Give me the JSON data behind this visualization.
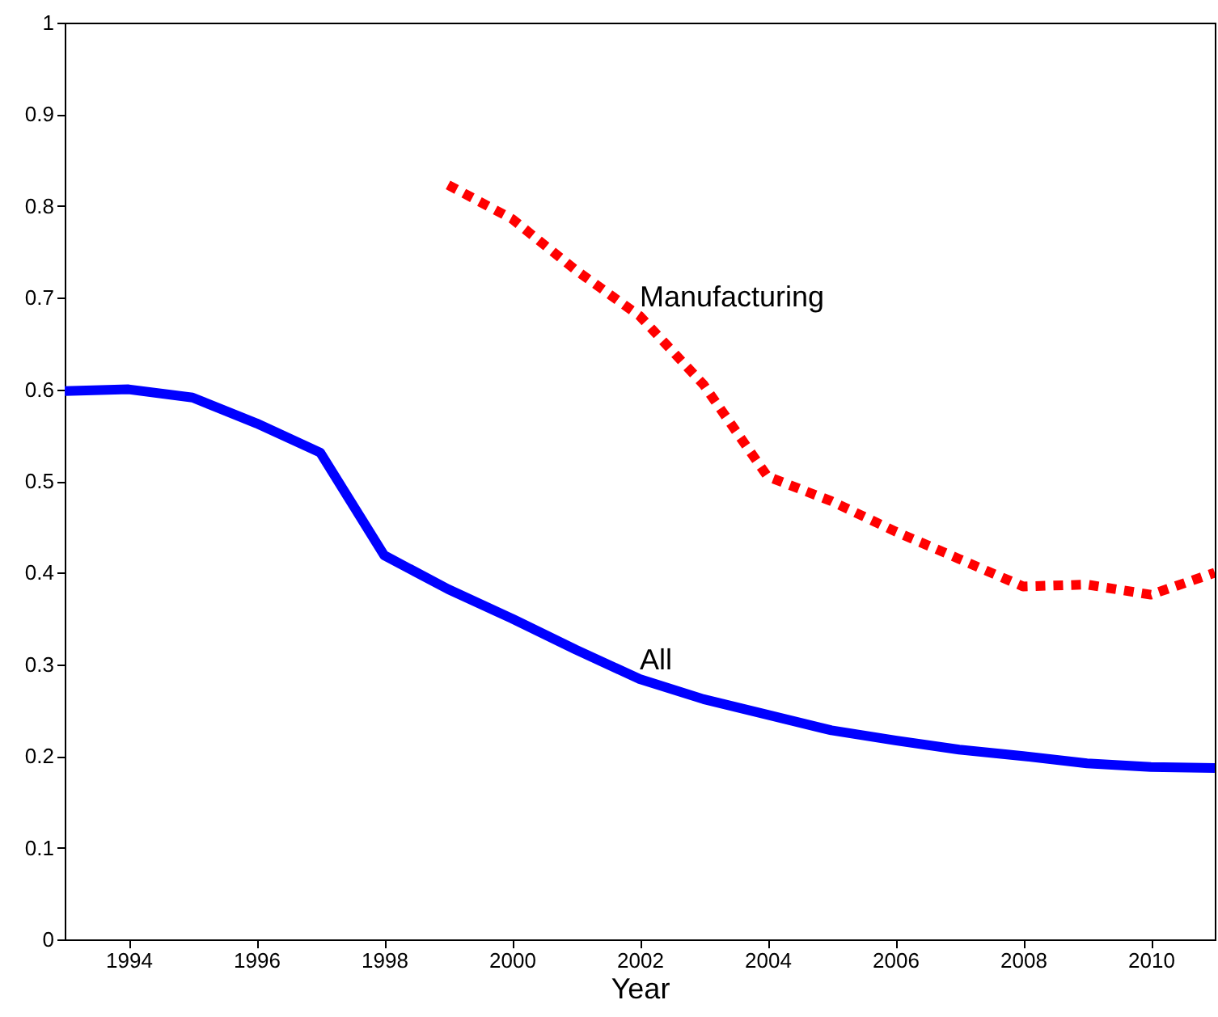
{
  "chart_data": {
    "type": "line",
    "xlabel": "Year",
    "x": [
      1993,
      1994,
      1995,
      1996,
      1997,
      1998,
      1999,
      2000,
      2001,
      2002,
      2003,
      2004,
      2005,
      2006,
      2007,
      2008,
      2009,
      2010,
      2011
    ],
    "series": [
      {
        "color": "#0000ff",
        "line_style": "solid",
        "values": [
          0.598,
          0.6,
          0.591,
          0.563,
          0.531,
          0.419,
          0.382,
          0.35,
          0.316,
          0.284,
          0.262,
          0.245,
          0.228,
          0.217,
          0.207,
          0.2,
          0.192,
          0.188,
          0.187
        ]
      },
      {
        "color": "#ff0000",
        "line_style": "dashed",
        "x": [
          1999,
          2000,
          2001,
          2002,
          2003,
          2004,
          2005,
          2006,
          2007,
          2008,
          2009,
          2010,
          2011
        ],
        "values": [
          0.823,
          0.786,
          0.73,
          0.68,
          0.605,
          0.505,
          0.478,
          0.445,
          0.415,
          0.385,
          0.387,
          0.376,
          0.4
        ]
      }
    ],
    "annotations": [
      {
        "text": "Manufacturing",
        "x": 2002,
        "y": 0.68
      },
      {
        "text": "All",
        "x": 2002,
        "y": 0.284
      }
    ],
    "xlim": [
      1993,
      2011
    ],
    "ylim": [
      0,
      1
    ],
    "xticks": [
      1994,
      1996,
      1998,
      2000,
      2002,
      2004,
      2006,
      2008,
      2010
    ],
    "yticks": [
      0,
      0.1,
      0.2,
      0.3,
      0.4,
      0.5,
      0.6,
      0.7,
      0.8,
      0.9,
      1
    ],
    "grid": false,
    "marker": "none"
  }
}
